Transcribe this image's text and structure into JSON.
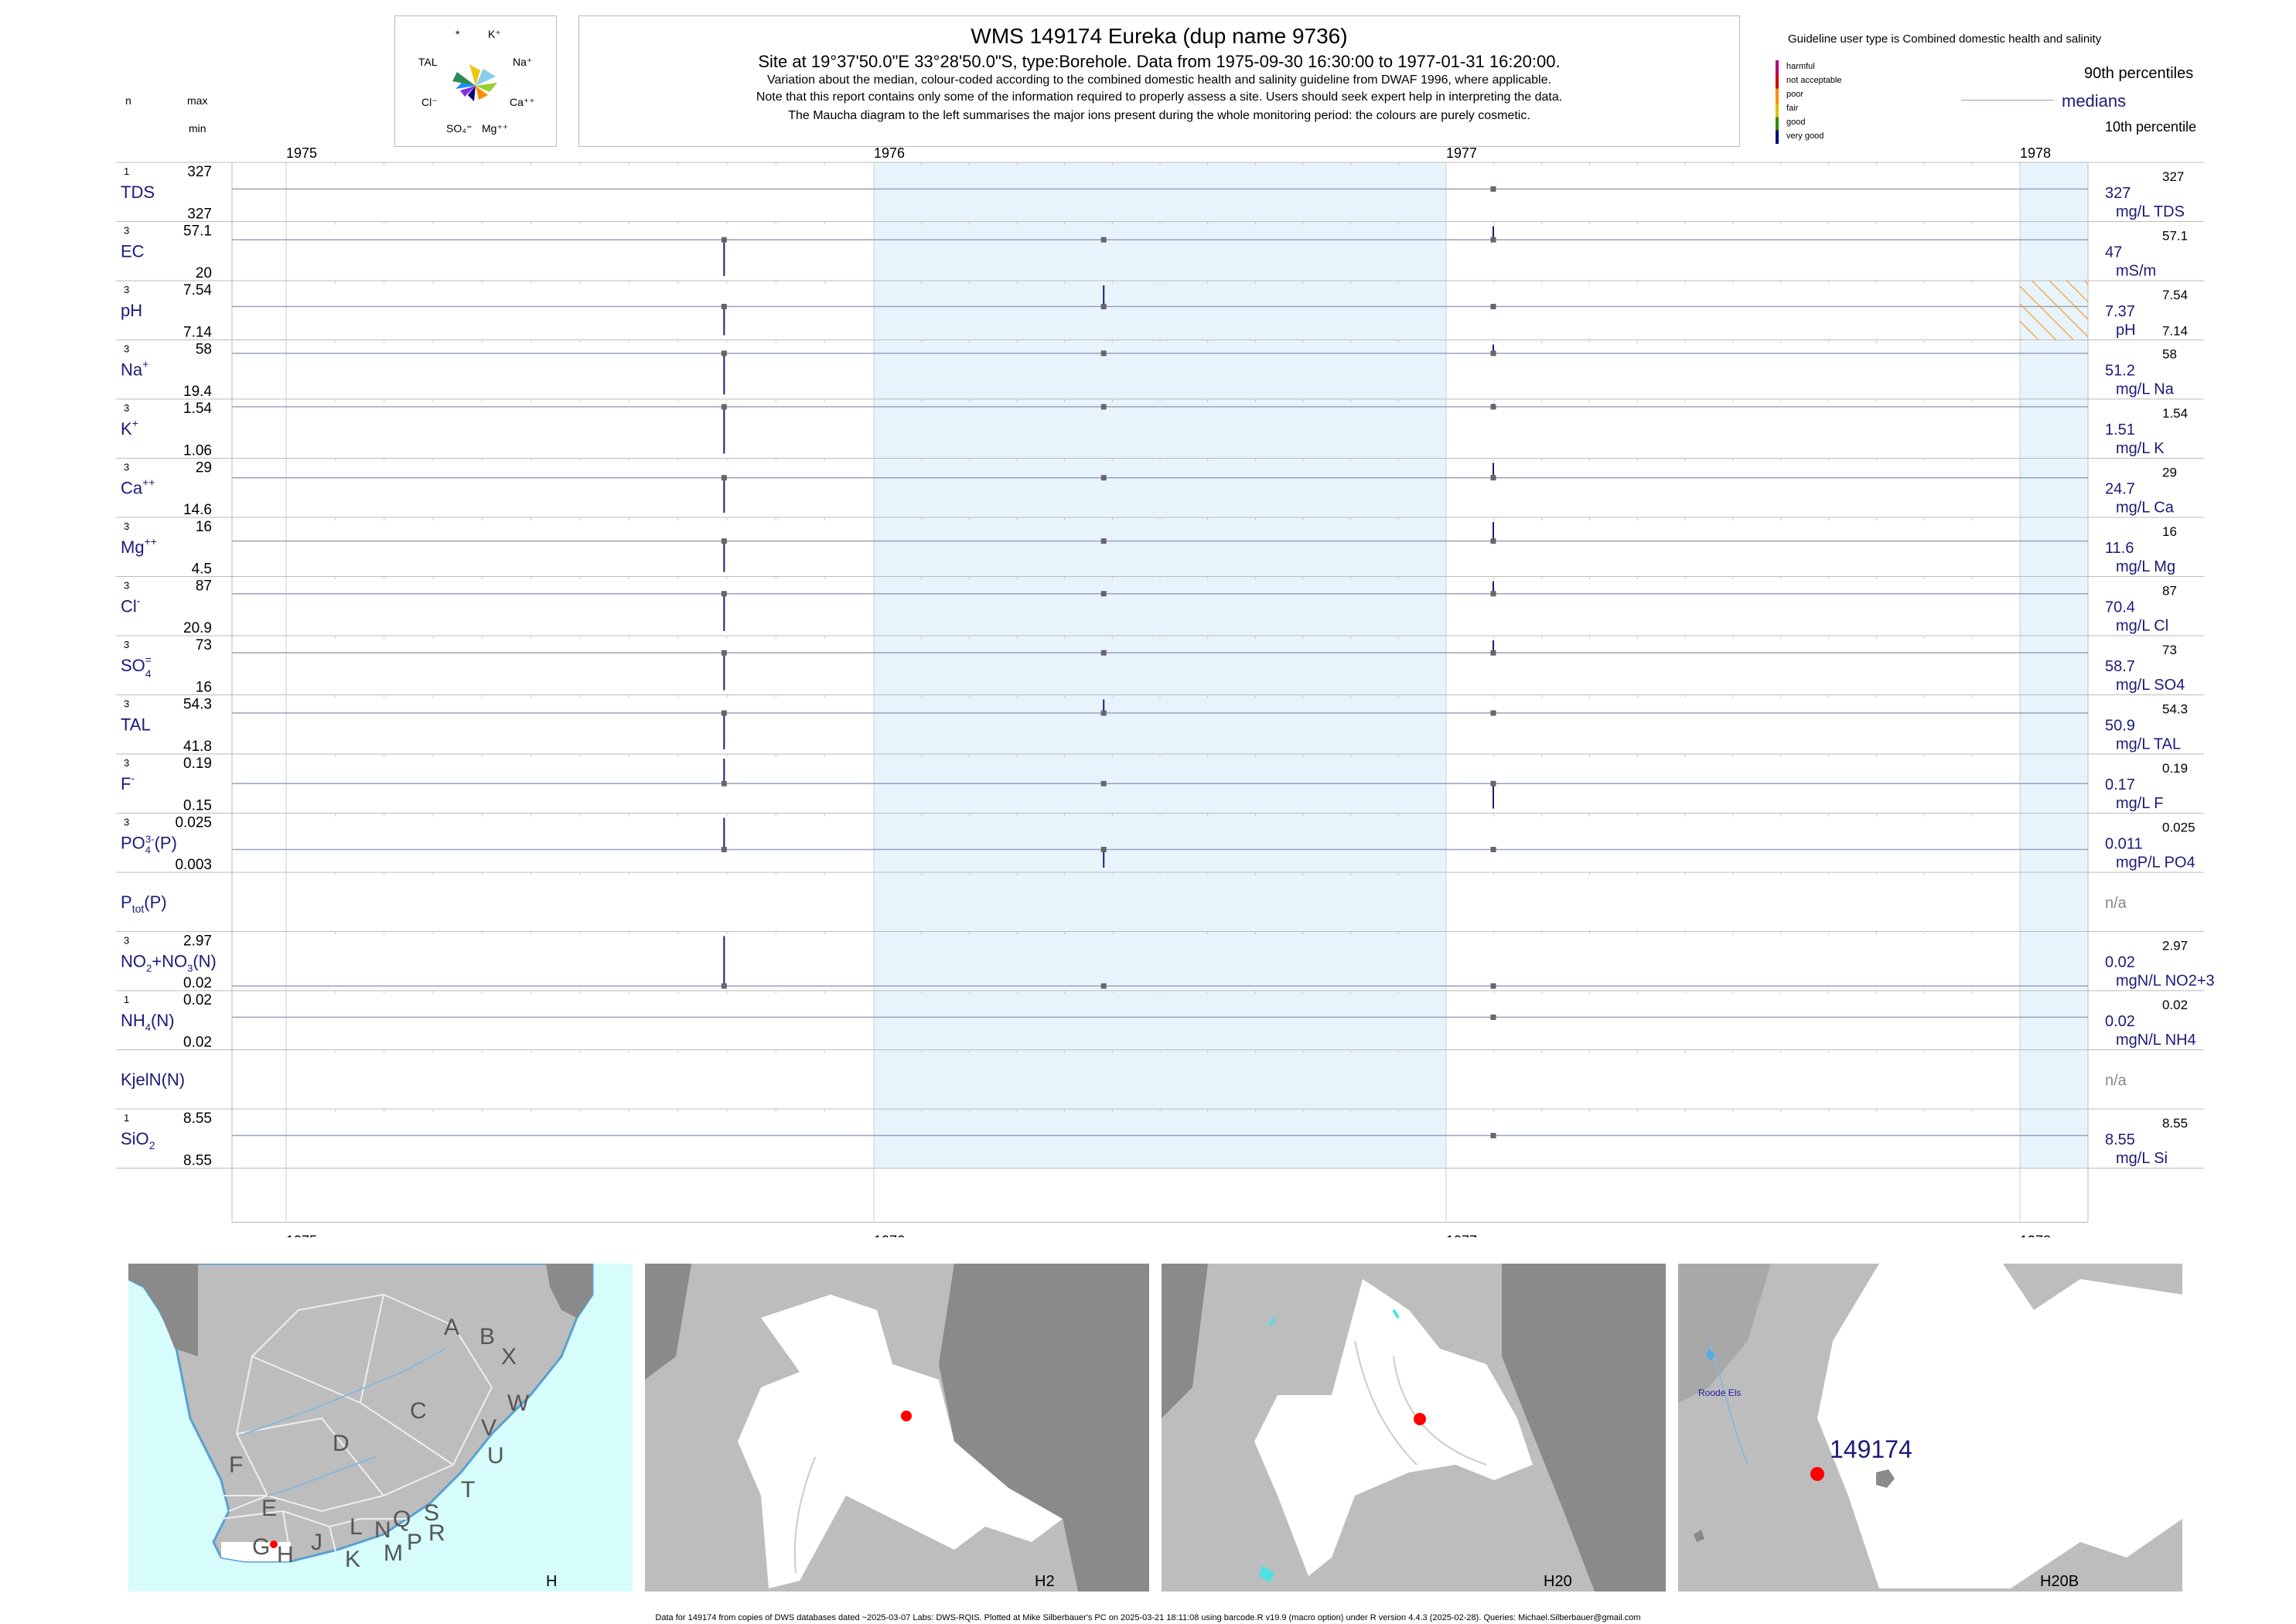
{
  "header": {
    "title": "WMS 149174  Eureka (dup name 9736)",
    "site_line": "Site at 19°37'50.0\"E 33°28'50.0\"S, type:Borehole.  Data from 1975-09-30 16:30:00 to 1977-01-31 16:20:00.",
    "note1": "Variation about the median,  colour-coded according to the combined domestic health and salinity guideline from DWAF 1996, where applicable.",
    "note2": "Note that this report contains only some of the information required to properly assess a site. Users should seek expert help in interpreting the data.",
    "note3": "The Maucha diagram to the left summarises the major ions present during the whole monitoring period: the colours are purely cosmetic."
  },
  "maucha": {
    "labels": {
      "star": "*",
      "k": "K⁺",
      "tal": "TAL",
      "na": "Na⁺",
      "cl": "Cl⁻",
      "ca": "Ca⁺⁺",
      "so4": "SO₄⁼",
      "mg": "Mg⁺⁺"
    },
    "colors": [
      "#2e8b57",
      "#f1c40f",
      "#87ceeb",
      "#000080",
      "#9acd32",
      "#ff8c00",
      "#1e90ff",
      "#8a2be2"
    ]
  },
  "col_headers": {
    "n": "n",
    "max": "max",
    "min": "min"
  },
  "legend": {
    "guideline": "Guideline user type is Combined domestic health and salinity",
    "classes": [
      {
        "label": "harmful",
        "color": "#b5007a"
      },
      {
        "label": "not acceptable",
        "color": "#d00000"
      },
      {
        "label": "poor",
        "color": "#ff8c00"
      },
      {
        "label": "fair",
        "color": "#e0c000"
      },
      {
        "label": "good",
        "color": "#2e8b00"
      },
      {
        "label": "very good",
        "color": "#000080"
      }
    ],
    "p90": "90th percentiles",
    "medians": "medians",
    "p10": "10th percentile"
  },
  "chart_data": {
    "type": "scatter",
    "x_axis": {
      "ticks": [
        "1975",
        "1976",
        "1977",
        "1978"
      ],
      "range": [
        "1975-01-01",
        "1978-03-01"
      ]
    },
    "shaded_years": [
      "1976",
      "1978"
    ],
    "sample_dates": [
      "1975-09-30",
      "1976-05-27",
      "1977-01-31"
    ],
    "rows": [
      {
        "label": "TDS",
        "n": "1",
        "max": "327",
        "min": "327",
        "median": "327",
        "unit": "mg/L TDS",
        "scale_max": "327",
        "samples": [
          [
            "1977-01-31",
            327,
            327
          ]
        ]
      },
      {
        "label": "EC",
        "n": "3",
        "max": "57.1",
        "min": "20",
        "median": "47",
        "unit": "mS/m",
        "scale_max": "57.1",
        "samples": [
          [
            "1975-09-30",
            20,
            47
          ],
          [
            "1976-05-27",
            47,
            47
          ],
          [
            "1977-01-31",
            47,
            57.1
          ]
        ]
      },
      {
        "label": "pH",
        "n": "3",
        "max": "7.54",
        "min": "7.14",
        "median": "7.37",
        "unit": "pH",
        "scale_max": "7.54",
        "scale_min": "7.14",
        "samples": [
          [
            "1975-09-30",
            7.14,
            7.37
          ],
          [
            "1976-05-27",
            7.37,
            7.54
          ],
          [
            "1977-01-31",
            7.37,
            7.37
          ]
        ]
      },
      {
        "label": "Na+",
        "n": "3",
        "max": "58",
        "min": "19.4",
        "median": "51.2",
        "unit": "mg/L Na",
        "scale_max": "58",
        "samples": [
          [
            "1975-09-30",
            19.4,
            51.2
          ],
          [
            "1976-05-27",
            51.2,
            51.2
          ],
          [
            "1977-01-31",
            51.2,
            58
          ]
        ]
      },
      {
        "label": "K+",
        "n": "3",
        "max": "1.54",
        "min": "1.06",
        "median": "1.51",
        "unit": "mg/L K",
        "scale_max": "1.54",
        "samples": [
          [
            "1975-09-30",
            1.06,
            1.51
          ],
          [
            "1976-05-27",
            1.51,
            1.51
          ],
          [
            "1977-01-31",
            1.51,
            1.54
          ]
        ]
      },
      {
        "label": "Ca++",
        "n": "3",
        "max": "29",
        "min": "14.6",
        "median": "24.7",
        "unit": "mg/L Ca",
        "scale_max": "29",
        "samples": [
          [
            "1975-09-30",
            14.6,
            24.7
          ],
          [
            "1976-05-27",
            24.7,
            24.7
          ],
          [
            "1977-01-31",
            24.7,
            29
          ]
        ]
      },
      {
        "label": "Mg++",
        "n": "3",
        "max": "16",
        "min": "4.5",
        "median": "11.6",
        "unit": "mg/L Mg",
        "scale_max": "16",
        "samples": [
          [
            "1975-09-30",
            4.5,
            11.6
          ],
          [
            "1976-05-27",
            11.6,
            11.6
          ],
          [
            "1977-01-31",
            11.6,
            16
          ]
        ]
      },
      {
        "label": "Cl-",
        "n": "3",
        "max": "87",
        "min": "20.9",
        "median": "70.4",
        "unit": "mg/L Cl",
        "scale_max": "87",
        "samples": [
          [
            "1975-09-30",
            20.9,
            70.4
          ],
          [
            "1976-05-27",
            70.4,
            70.4
          ],
          [
            "1977-01-31",
            70.4,
            87
          ]
        ]
      },
      {
        "label": "SO4=",
        "n": "3",
        "max": "73",
        "min": "16",
        "median": "58.7",
        "unit": "mg/L SO4",
        "scale_max": "73",
        "samples": [
          [
            "1975-09-30",
            16,
            58.7
          ],
          [
            "1976-05-27",
            58.7,
            58.7
          ],
          [
            "1977-01-31",
            58.7,
            73
          ]
        ]
      },
      {
        "label": "TAL",
        "n": "3",
        "max": "54.3",
        "min": "41.8",
        "median": "50.9",
        "unit": "mg/L TAL",
        "scale_max": "54.3",
        "samples": [
          [
            "1975-09-30",
            41.8,
            50.9
          ],
          [
            "1976-05-27",
            50.9,
            54.3
          ],
          [
            "1977-01-31",
            50.9,
            50.9
          ]
        ]
      },
      {
        "label": "F-",
        "n": "3",
        "max": "0.19",
        "min": "0.15",
        "median": "0.17",
        "unit": "mg/L F",
        "scale_max": "0.19",
        "samples": [
          [
            "1975-09-30",
            0.17,
            0.19
          ],
          [
            "1976-05-27",
            0.17,
            0.17
          ],
          [
            "1977-01-31",
            0.15,
            0.17
          ]
        ]
      },
      {
        "label": "PO4(P)",
        "n": "3",
        "max": "0.025",
        "min": "0.003",
        "median": "0.011",
        "unit": "mgP/L PO4",
        "scale_max": "0.025",
        "samples": [
          [
            "1975-09-30",
            0.011,
            0.025
          ],
          [
            "1976-05-27",
            0.003,
            0.011
          ],
          [
            "1977-01-31",
            0.011,
            0.011
          ]
        ]
      },
      {
        "label": "Ptot(P)",
        "n": "",
        "max": "",
        "min": "",
        "median": "n/a",
        "unit": "",
        "scale_max": "",
        "samples": []
      },
      {
        "label": "NO2+NO3(N)",
        "n": "3",
        "max": "2.97",
        "min": "0.02",
        "median": "0.02",
        "unit": "mgN/L NO2+3",
        "scale_max": "2.97",
        "samples": [
          [
            "1975-09-30",
            0.02,
            2.97
          ],
          [
            "1976-05-27",
            0.02,
            0.02
          ],
          [
            "1977-01-31",
            0.02,
            0.02
          ]
        ]
      },
      {
        "label": "NH4(N)",
        "n": "1",
        "max": "0.02",
        "min": "0.02",
        "median": "0.02",
        "unit": "mgN/L NH4",
        "scale_max": "0.02",
        "samples": [
          [
            "1977-01-31",
            0.02,
            0.02
          ]
        ]
      },
      {
        "label": "KjelN(N)",
        "n": "",
        "max": "",
        "min": "",
        "median": "n/a",
        "unit": "",
        "scale_max": "",
        "samples": []
      },
      {
        "label": "SiO2",
        "n": "1",
        "max": "8.55",
        "min": "8.55",
        "median": "8.55",
        "unit": "mg/L Si",
        "scale_max": "8.55",
        "samples": [
          [
            "1977-01-31",
            8.55,
            8.55
          ]
        ]
      }
    ]
  },
  "maps": {
    "panel1_letters": [
      "A",
      "B",
      "X",
      "C",
      "W",
      "D",
      "V",
      "U",
      "F",
      "T",
      "E",
      "L",
      "N",
      "Q",
      "S",
      "R",
      "G",
      "H",
      "J",
      "K",
      "M",
      "P"
    ],
    "panel1_caption": "H",
    "panel2_caption": "H2",
    "panel3_caption": "H20",
    "panel4_caption": "H20B",
    "panel4_place": "Roode Els",
    "panel4_site": "149174"
  },
  "footer": "Data for 149174 from copies of DWS databases dated ~2025-03-07 Labs: DWS-RQIS. Plotted at Mike Silberbauer's PC on 2025-03-21 18:11:08 using barcode.R v19.9 (macro option) under R version 4.4.3 (2025-02-28). Queries: Michael.Silberbauer@gmail.com"
}
